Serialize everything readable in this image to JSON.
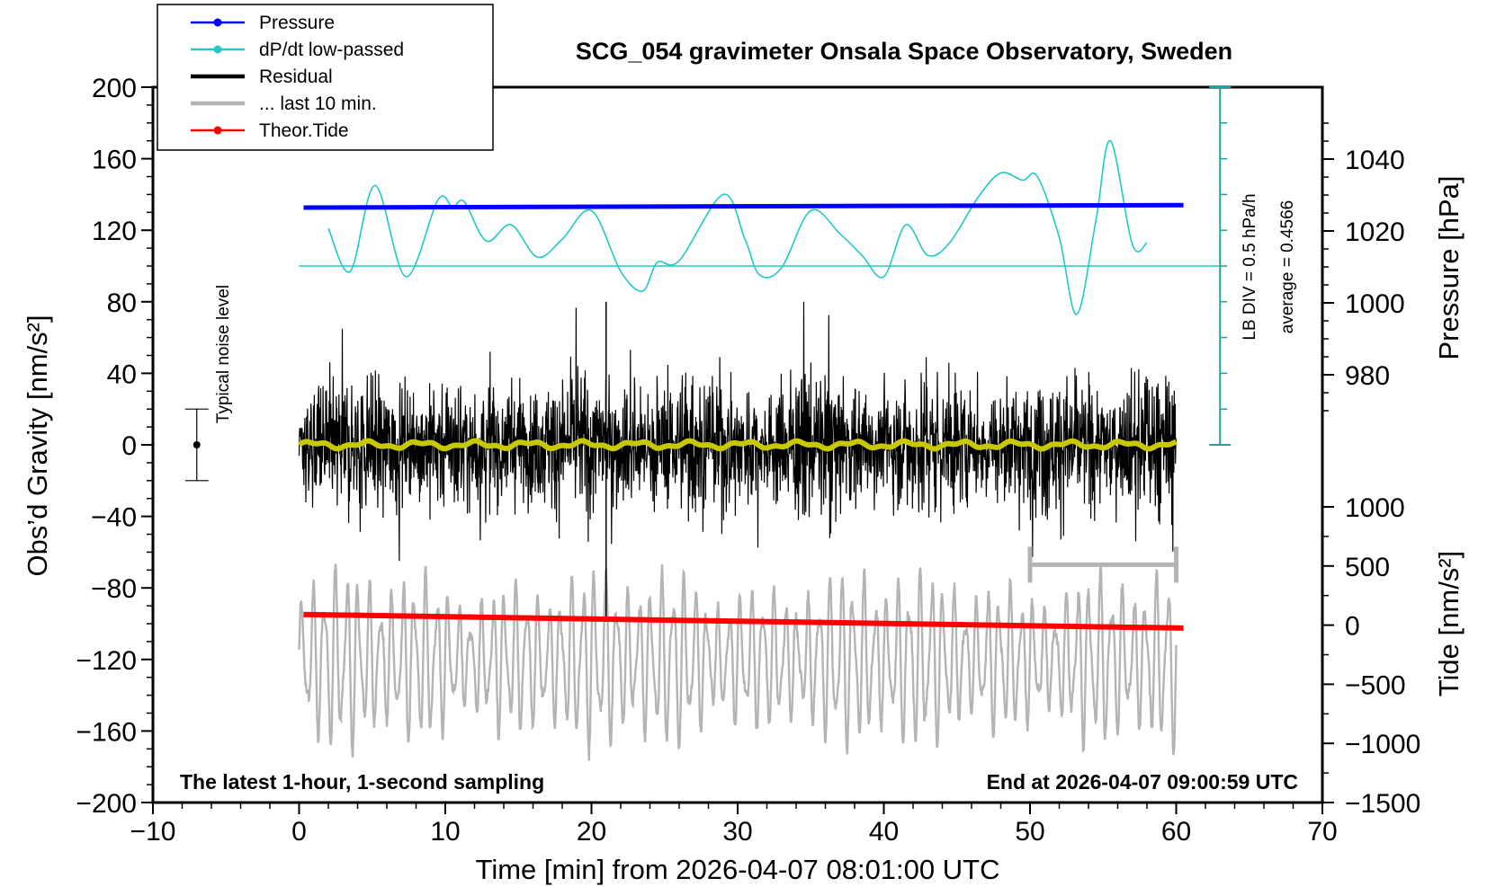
{
  "chart_data": {
    "type": "line",
    "title": "SCG_054 gravimeter Onsala Space Observatory, Sweden",
    "xlabel": "Time [min] from 2026-04-07 08:01:00 UTC",
    "ylabel_left": "Obs’d Gravity [nm/s²]",
    "ylabel_pressure": "Pressure [hPa]",
    "ylabel_tide": "Tide [nm/s²]",
    "xlim": [
      -10,
      70
    ],
    "ylim": [
      -200,
      200
    ],
    "x_ticks": [
      "−10",
      "0",
      "10",
      "20",
      "30",
      "40",
      "50",
      "60",
      "70"
    ],
    "y_ticks": [
      "200",
      "160",
      "120",
      "80",
      "40",
      "0",
      "−40",
      "−80",
      "−120",
      "−160",
      "−200"
    ],
    "pressure_ticks": [
      "1040",
      "1020",
      "1000",
      "980"
    ],
    "tide_ticks": [
      "1000",
      "500",
      "0",
      "−500",
      "−1000",
      "−1500"
    ],
    "bottom_left_note": "The latest 1-hour, 1-second sampling",
    "bottom_right_note": "End at 2026-04-07 09:00:59 UTC",
    "noise_label": "Typical noise level",
    "noise_level": {
      "x": -7,
      "center": 0,
      "half_range": 20
    },
    "dpdt_scale_label": "LB DIV = 0.5 hPa/h",
    "dpdt_average_label": "average = 0.4566",
    "legend": [
      {
        "label": "Pressure",
        "color": "#0000ff",
        "marker": true
      },
      {
        "label": "dP/dt low-passed",
        "color": "#20c8c8",
        "marker": true
      },
      {
        "label": "Residual",
        "color": "#000000",
        "marker": false
      },
      {
        "label": "... last 10 min.",
        "color": "#b4b4b4",
        "marker": false
      },
      {
        "label": "Theor.Tide",
        "color": "#ff0000",
        "marker": true
      }
    ],
    "series": [
      {
        "name": "Pressure",
        "axis": "pressure_hPa",
        "color": "#0000ff",
        "x": [
          0,
          60.5
        ],
        "values": [
          1026.5,
          1027.2
        ]
      },
      {
        "name": "dP/dt low-passed",
        "axis": "gravity_nm_s2",
        "color": "#20c8c8",
        "baseline": 100,
        "x": [
          2,
          3.5,
          5.2,
          7.3,
          9.5,
          10.5,
          11.3,
          12.8,
          14.5,
          16.3,
          18,
          20,
          22,
          23.5,
          24.5,
          26,
          29,
          30.5,
          31.5,
          33,
          35,
          37,
          38.5,
          40,
          41.5,
          43,
          44.5,
          46.5,
          48,
          49.5,
          50.5,
          52,
          53.2,
          54.5,
          55.5,
          57,
          58
        ],
        "values": [
          121,
          97,
          145,
          94,
          137,
          133,
          136,
          114,
          123,
          105,
          115,
          131,
          97,
          86,
          102,
          103,
          140,
          115,
          95,
          99,
          131,
          118,
          106,
          94,
          123,
          106,
          113,
          139,
          152,
          148,
          150,
          116,
          73,
          125,
          170,
          112,
          113
        ]
      },
      {
        "name": "Residual",
        "axis": "gravity_nm_s2",
        "color": "#000000",
        "x": [
          0,
          60
        ],
        "envelope": [
          -65,
          80
        ],
        "typical_amplitude": 40
      },
      {
        "name": "Residual smoothed",
        "axis": "gravity_nm_s2",
        "color": "#c8c800",
        "x": [
          0,
          60
        ],
        "values": [
          0,
          0
        ]
      },
      {
        "name": "... last 10 min.",
        "axis": "gravity_nm_s2",
        "color": "#b4b4b4",
        "x": [
          0,
          60
        ],
        "center": -120,
        "range": [
          -183,
          -60
        ]
      },
      {
        "name": "Theor.Tide",
        "axis": "tide_nm_s2",
        "color": "#ff0000",
        "x": [
          0.3,
          60.5
        ],
        "values": [
          90,
          -25
        ]
      }
    ],
    "window_marker": {
      "x_start": 50,
      "x_end": 60,
      "value": -67
    }
  }
}
